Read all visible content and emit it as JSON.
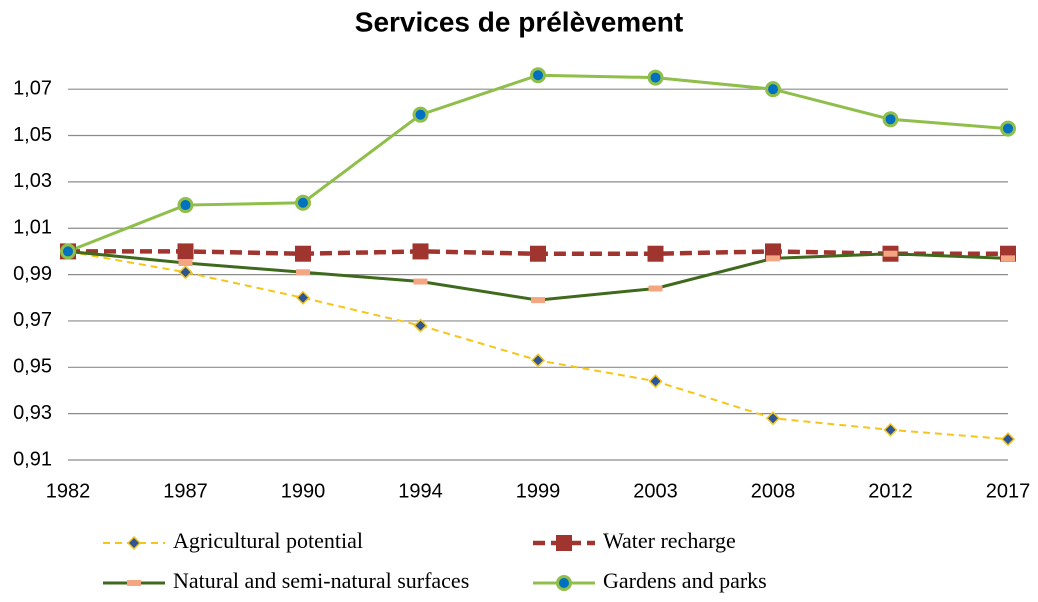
{
  "chart_data": {
    "type": "line",
    "title": "Services de prélèvement",
    "categories": [
      "1982",
      "1987",
      "1990",
      "1994",
      "1999",
      "2003",
      "2008",
      "2012",
      "2017"
    ],
    "ylim": [
      0.91,
      1.08
    ],
    "yticks": [
      {
        "value": 0.91,
        "label": "0,91"
      },
      {
        "value": 0.93,
        "label": "0,93"
      },
      {
        "value": 0.95,
        "label": "0,95"
      },
      {
        "value": 0.97,
        "label": "0,97"
      },
      {
        "value": 0.99,
        "label": "0,99"
      },
      {
        "value": 1.01,
        "label": "1,01"
      },
      {
        "value": 1.03,
        "label": "1,03"
      },
      {
        "value": 1.05,
        "label": "1,05"
      },
      {
        "value": 1.07,
        "label": "1,07"
      }
    ],
    "grid": true,
    "legend": "bottom",
    "series": [
      {
        "name": "Agricultural potential",
        "color": "#f5c518",
        "dashed": true,
        "marker": "diamond",
        "values": [
          1.0,
          0.991,
          0.98,
          0.968,
          0.953,
          0.944,
          0.928,
          0.923,
          0.919
        ]
      },
      {
        "name": "Water recharge",
        "color": "#a0352f",
        "dashed": true,
        "marker": "square",
        "values": [
          1.0,
          1.0,
          0.999,
          1.0,
          0.999,
          0.999,
          1.0,
          0.999,
          0.999
        ]
      },
      {
        "name": "Natural and semi-natural surfaces",
        "color": "#3f6a1e",
        "dashed": false,
        "marker": "dash",
        "values": [
          1.0,
          0.995,
          0.991,
          0.987,
          0.979,
          0.984,
          0.997,
          0.999,
          0.997
        ]
      },
      {
        "name": "Gardens and parks",
        "color": "#8fbf4a",
        "dashed": false,
        "marker": "circle",
        "values": [
          1.0,
          1.02,
          1.021,
          1.059,
          1.076,
          1.075,
          1.07,
          1.057,
          1.053
        ]
      }
    ]
  }
}
